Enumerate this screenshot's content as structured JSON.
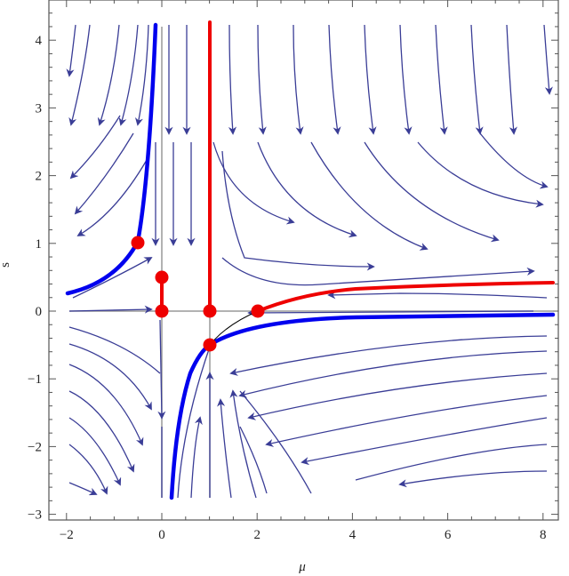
{
  "chart_data": {
    "type": "streamplot",
    "title": "",
    "xlabel": "μ",
    "ylabel": "s",
    "xlim": [
      -2.4,
      8.3
    ],
    "ylim": [
      -3.1,
      4.6
    ],
    "x_ticks": [
      -2,
      0,
      2,
      4,
      6,
      8
    ],
    "x_tick_labels": [
      "−2",
      "0",
      "2",
      "4",
      "6",
      "8"
    ],
    "y_ticks": [
      -3,
      -2,
      -1,
      0,
      1,
      2,
      3,
      4
    ],
    "y_tick_labels": [
      "−3",
      "−2",
      "−1",
      "0",
      "1",
      "2",
      "3",
      "4"
    ],
    "grid": false,
    "reference_lines": [
      {
        "orientation": "vertical",
        "at": 0,
        "color": "#999999"
      },
      {
        "orientation": "vertical",
        "at": 1,
        "color": "#999999"
      },
      {
        "orientation": "horizontal",
        "at": 0,
        "color": "#999999"
      }
    ],
    "stream_color": "#3a3d96",
    "series": [
      {
        "name": "blue-curve-upper",
        "color": "#0000ee",
        "points": [
          [
            -2,
            0.25
          ],
          [
            -1,
            0.5
          ],
          [
            -0.5,
            1.0
          ],
          [
            -0.3,
            2.0
          ],
          [
            -0.15,
            3.5
          ],
          [
            -0.1,
            4.25
          ]
        ]
      },
      {
        "name": "blue-curve-lower",
        "color": "#0000ee",
        "points": [
          [
            0.2,
            -2.75
          ],
          [
            0.3,
            -1.5
          ],
          [
            0.6,
            -0.8
          ],
          [
            1.0,
            -0.5
          ],
          [
            2.0,
            -0.25
          ],
          [
            4.0,
            -0.13
          ],
          [
            8.2,
            -0.06
          ]
        ]
      },
      {
        "name": "red-vertical-mu1",
        "color": "#ee0000",
        "points": [
          [
            1,
            0
          ],
          [
            1,
            4.25
          ]
        ]
      },
      {
        "name": "red-segment-mu0",
        "color": "#ee0000",
        "points": [
          [
            0,
            0
          ],
          [
            0,
            0.5
          ]
        ]
      },
      {
        "name": "red-curve",
        "color": "#ee0000",
        "points": [
          [
            2,
            0
          ],
          [
            3,
            0.18
          ],
          [
            4,
            0.27
          ],
          [
            6,
            0.36
          ],
          [
            8.2,
            0.42
          ]
        ]
      }
    ],
    "fixed_points": [
      {
        "mu": -0.5,
        "s": 1.0
      },
      {
        "mu": 0,
        "s": 0.5
      },
      {
        "mu": 0,
        "s": 0
      },
      {
        "mu": 1,
        "s": 0
      },
      {
        "mu": 2,
        "s": 0
      },
      {
        "mu": 1,
        "s": -0.5
      }
    ],
    "fixed_point_color": "#ee0000"
  }
}
